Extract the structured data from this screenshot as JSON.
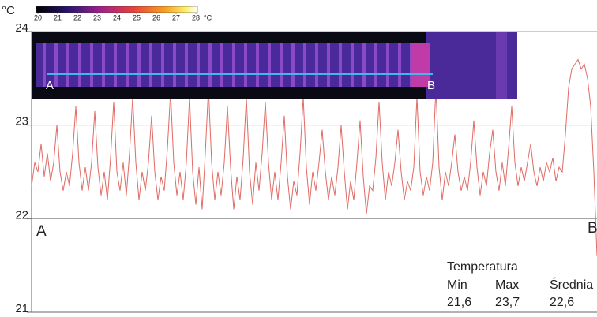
{
  "chart_data": {
    "type": "line",
    "y_unit": "°C",
    "ylim": [
      21,
      24
    ],
    "yticks": [
      21,
      22,
      23,
      24
    ],
    "grid": true,
    "start_label": "A",
    "end_label": "B",
    "colorbar": {
      "lim": [
        20,
        28
      ],
      "ticks": [
        20,
        21,
        22,
        23,
        24,
        25,
        26,
        27,
        28
      ],
      "unit": "°C"
    },
    "series": [
      {
        "color": "#e06a64",
        "values": [
          22.35,
          22.6,
          22.5,
          22.8,
          22.45,
          22.7,
          22.4,
          22.6,
          23.0,
          22.5,
          22.3,
          22.5,
          22.35,
          22.7,
          23.2,
          22.6,
          22.3,
          22.55,
          22.3,
          22.6,
          23.15,
          22.55,
          22.25,
          22.5,
          22.2,
          22.65,
          23.25,
          22.5,
          22.3,
          22.6,
          22.25,
          22.7,
          23.3,
          22.6,
          22.2,
          22.5,
          22.3,
          22.6,
          23.1,
          22.5,
          22.2,
          22.45,
          22.3,
          22.75,
          23.35,
          22.6,
          22.25,
          22.5,
          22.2,
          22.6,
          23.3,
          22.5,
          22.15,
          22.55,
          22.1,
          22.7,
          23.4,
          22.6,
          22.2,
          22.5,
          22.25,
          22.6,
          23.2,
          22.55,
          22.1,
          22.45,
          22.2,
          22.65,
          23.3,
          22.5,
          22.15,
          22.6,
          22.3,
          22.7,
          23.25,
          22.6,
          22.2,
          22.5,
          22.2,
          22.6,
          23.1,
          22.45,
          22.1,
          22.4,
          22.25,
          22.7,
          23.3,
          22.55,
          22.15,
          22.5,
          22.3,
          22.6,
          22.95,
          22.5,
          22.2,
          22.45,
          22.25,
          22.55,
          23.0,
          22.5,
          22.1,
          22.4,
          22.2,
          22.6,
          23.05,
          22.45,
          22.05,
          22.35,
          22.3,
          22.65,
          23.25,
          22.6,
          22.2,
          22.5,
          22.35,
          22.6,
          22.95,
          22.5,
          22.2,
          22.4,
          22.3,
          22.55,
          23.3,
          22.5,
          22.25,
          22.45,
          22.3,
          22.6,
          23.4,
          22.55,
          22.2,
          22.5,
          22.35,
          22.6,
          22.9,
          22.5,
          22.3,
          22.45,
          22.3,
          22.6,
          23.05,
          22.55,
          22.25,
          22.5,
          22.35,
          22.7,
          22.95,
          22.5,
          22.3,
          22.6,
          22.35,
          22.75,
          23.2,
          22.6,
          22.35,
          22.55,
          22.4,
          22.6,
          22.8,
          22.5,
          22.35,
          22.55,
          22.4,
          22.6,
          22.5,
          22.65,
          22.4,
          22.55,
          22.5,
          22.9,
          23.4,
          23.6,
          23.65,
          23.7,
          23.6,
          23.65,
          23.5,
          23.2,
          22.5,
          21.6
        ]
      }
    ],
    "stats": {
      "title": "Temperatura",
      "headers": [
        "Min",
        "Max",
        "Średnia"
      ],
      "values": [
        {
          "value": 21.6,
          "label": "21,6"
        },
        {
          "value": 23.7,
          "label": "23,7"
        },
        {
          "value": 22.6,
          "label": "22,6"
        }
      ]
    }
  }
}
